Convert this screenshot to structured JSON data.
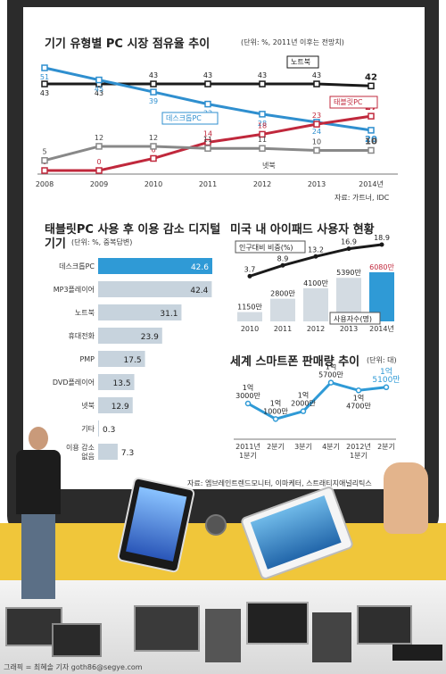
{
  "chart_data": [
    {
      "type": "line",
      "title": "기기 유형별 PC 시장 점유율 추이",
      "unit_note": "(단위: %, 2011년 이후는 전망치)",
      "x": [
        "2008",
        "2009",
        "2010",
        "2011",
        "2012",
        "2013",
        "2014년"
      ],
      "series": [
        {
          "name": "노트북",
          "values": [
            43,
            43,
            43,
            43,
            43,
            43,
            42
          ],
          "labels": [
            "43",
            "43",
            "43",
            "43",
            "43",
            "43",
            "42"
          ],
          "color": "#1a1a1a"
        },
        {
          "name": "데스크톱PC",
          "values": [
            51,
            45,
            39,
            33,
            28,
            24,
            20
          ],
          "labels": [
            "51",
            "45",
            "39",
            "33",
            "28",
            "24",
            "20"
          ],
          "color": "#2f8fcf"
        },
        {
          "name": "태블릿PC",
          "values": [
            0,
            0,
            6,
            14,
            18,
            23,
            27
          ],
          "labels": [
            "0",
            "0",
            "6",
            "14",
            "18",
            "23",
            "27"
          ],
          "color": "#c0283c"
        },
        {
          "name": "넷북",
          "values": [
            5,
            12,
            12,
            11,
            11,
            10,
            10
          ],
          "labels": [
            "5",
            "12",
            "12",
            "11",
            "11",
            "10",
            "10"
          ],
          "color": "#888888"
        }
      ],
      "source": "자료: 가트너, IDC"
    },
    {
      "type": "bar",
      "title_line1": "태블릿PC 사용 후 이용 감소 디지털",
      "title_line2": "기기",
      "unit_note": "(단위: %, 중복답변)",
      "categories": [
        "데스크톱PC",
        "MP3플레이어",
        "노트북",
        "휴대전화",
        "PMP",
        "DVD플레이어",
        "넷북",
        "기타",
        "이용 감소 없음"
      ],
      "category_lines": [
        [
          "데스크톱PC"
        ],
        [
          "MP3플레이어"
        ],
        [
          "노트북"
        ],
        [
          "휴대전화"
        ],
        [
          "PMP"
        ],
        [
          "DVD플레이어"
        ],
        [
          "넷북"
        ],
        [
          "기타"
        ],
        [
          "이용 감소",
          "없음"
        ]
      ],
      "values": [
        42.6,
        42.4,
        31.1,
        23.9,
        17.5,
        13.5,
        12.9,
        0.3,
        7.3
      ],
      "labels": [
        "42.6",
        "42.4",
        "31.1",
        "23.9",
        "17.5",
        "13.5",
        "12.9",
        "0.3",
        "7.3"
      ],
      "highlight_color": "#2f9ad6",
      "bar_color": "#c7d3dd"
    },
    {
      "type": "bar",
      "title": "미국 내 아이패드 사용자 현황",
      "categories": [
        "2010",
        "2011",
        "2012",
        "2013",
        "2014년"
      ],
      "users": [
        1150,
        2800,
        4100,
        5390,
        6080
      ],
      "user_labels": [
        "1150만",
        "2800만",
        "4100만",
        "5390만",
        "6080만"
      ],
      "ratio": [
        3.7,
        8.9,
        13.2,
        16.9,
        18.9
      ],
      "ratio_labels": [
        "3.7",
        "8.9",
        "13.2",
        "16.9",
        "18.9"
      ],
      "legend_ratio": "인구대비 비중(%)",
      "legend_users": "사용자수(명)"
    },
    {
      "type": "line",
      "title": "세계 스마트폰 판매량 추이",
      "unit_note": "(단위: 대)",
      "x": [
        "2011년 1분기",
        "2분기",
        "3분기",
        "4분기",
        "2012년 1분기",
        "2분기"
      ],
      "x_lines": [
        [
          "2011년",
          "1분기"
        ],
        [
          "2분기"
        ],
        [
          "3분기"
        ],
        [
          "4분기"
        ],
        [
          "2012년",
          "1분기"
        ],
        [
          "2분기"
        ]
      ],
      "values": [
        13000,
        11000,
        12000,
        15700,
        14700,
        15100
      ],
      "value_labels": [
        [
          "1억",
          "3000만"
        ],
        [
          "1억",
          "1000만"
        ],
        [
          "1억",
          "2000만"
        ],
        [
          "1억",
          "5700만"
        ],
        [
          "1억",
          "4700만"
        ],
        [
          "1억",
          "5100만"
        ]
      ],
      "color": "#2f9ad6"
    }
  ],
  "source_bottom": "자료: 엠브레인트렌드모니터, 이마케터, 스트래티지애널리틱스",
  "credit": "그래픽 = 최혜솔 기자 goth86@segye.com"
}
